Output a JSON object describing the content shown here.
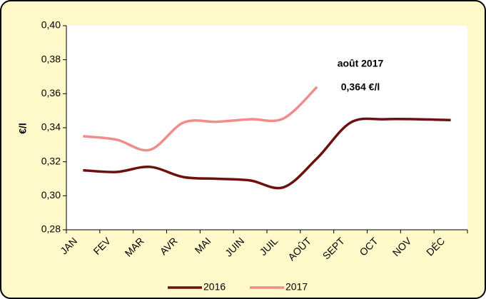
{
  "chart_data": {
    "type": "line",
    "ylabel": "€/l",
    "categories": [
      "JAN",
      "FEV",
      "MAR",
      "AVR",
      "MAI",
      "JUIN",
      "JUIL",
      "AOÛT",
      "SEPT",
      "OCT",
      "NOV",
      "DÉC"
    ],
    "series": [
      {
        "name": "2016",
        "color": "#6e1010",
        "values": [
          0.315,
          0.314,
          0.317,
          0.311,
          0.31,
          0.309,
          0.305,
          0.322,
          0.343,
          0.345,
          0.345,
          0.3445
        ]
      },
      {
        "name": "2017",
        "color": "#f28c8c",
        "values": [
          0.335,
          0.333,
          0.327,
          0.343,
          0.3435,
          0.345,
          0.3455,
          0.364,
          null,
          null,
          null,
          null
        ]
      }
    ],
    "ylim": [
      0.28,
      0.4
    ],
    "yticks": [
      {
        "value": 0.28,
        "label": "0,28"
      },
      {
        "value": 0.3,
        "label": "0,30"
      },
      {
        "value": 0.32,
        "label": "0,32"
      },
      {
        "value": 0.34,
        "label": "0,34"
      },
      {
        "value": 0.36,
        "label": "0,36"
      },
      {
        "value": 0.38,
        "label": "0,38"
      },
      {
        "value": 0.4,
        "label": "0,40"
      }
    ],
    "annotations": [
      "août 2017",
      "0,364 €/l"
    ],
    "annotation_color": "#7030a0",
    "legend": "bottom"
  }
}
